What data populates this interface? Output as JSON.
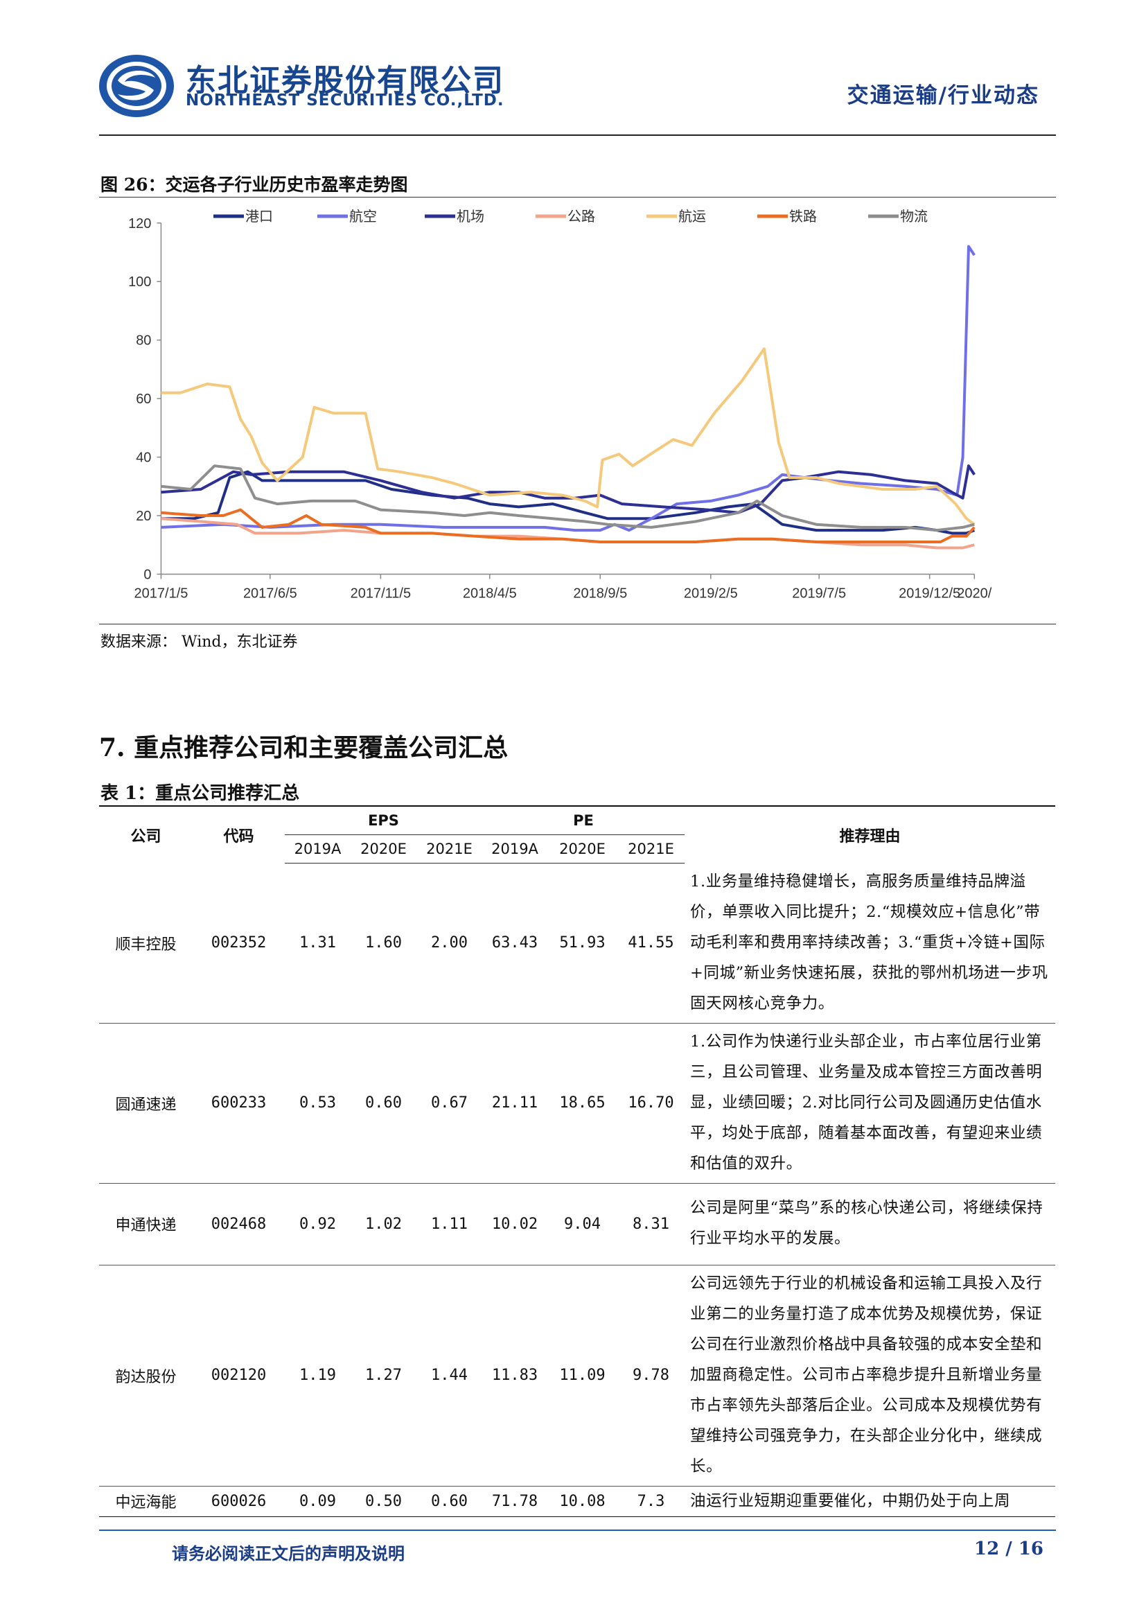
{
  "header": {
    "company_cn": "东北证券股份有限公司",
    "company_en": "NORTHEAST SECURITIES CO.,LTD.",
    "section": "交通运输/行业动态",
    "brand_color": "#17468e"
  },
  "figure": {
    "caption": "图 26：交运各子行业历史市盈率走势图",
    "source": "数据来源：  Wind，东北证券"
  },
  "chart_data": {
    "type": "line",
    "title": "",
    "xlabel": "",
    "ylabel": "",
    "ylim": [
      0,
      120
    ],
    "yticks": [
      "0",
      "20",
      "40",
      "60",
      "80",
      "100",
      "120"
    ],
    "xticks": [
      "2017/1/5",
      "2017/6/5",
      "2017/11/5",
      "2018/4/5",
      "2018/9/5",
      "2019/2/5",
      "2019/7/5",
      "2019/12/5",
      "2020/"
    ],
    "x_range": [
      "2017/1/5",
      "2020/2/5"
    ],
    "grid": false,
    "legend_position": "top",
    "series": [
      {
        "name": "港口",
        "color": "#1f2f86",
        "points": [
          [
            "2017/1/5",
            19
          ],
          [
            "2017/2/20",
            19
          ],
          [
            "2017/3/25",
            21
          ],
          [
            "2017/4/10",
            33
          ],
          [
            "2017/5/5",
            35
          ],
          [
            "2017/5/25",
            32
          ],
          [
            "2017/8/1",
            32
          ],
          [
            "2017/10/15",
            32
          ],
          [
            "2017/11/20",
            29
          ],
          [
            "2018/1/15",
            27
          ],
          [
            "2018/3/5",
            26
          ],
          [
            "2018/4/5",
            24
          ],
          [
            "2018/5/15",
            23
          ],
          [
            "2018/7/1",
            24
          ],
          [
            "2018/8/15",
            21
          ],
          [
            "2018/9/15",
            19
          ],
          [
            "2018/11/15",
            19
          ],
          [
            "2019/1/15",
            21
          ],
          [
            "2019/3/1",
            23
          ],
          [
            "2019/4/5",
            24
          ],
          [
            "2019/5/15",
            17
          ],
          [
            "2019/7/1",
            15
          ],
          [
            "2019/8/15",
            15
          ],
          [
            "2019/10/1",
            15
          ],
          [
            "2019/11/15",
            16
          ],
          [
            "2019/12/15",
            15
          ],
          [
            "2020/1/5",
            14
          ],
          [
            "2020/1/25",
            14
          ],
          [
            "2020/2/5",
            15
          ]
        ]
      },
      {
        "name": "航空",
        "color": "#6f6fe6",
        "points": [
          [
            "2017/1/5",
            16
          ],
          [
            "2017/4/1",
            17
          ],
          [
            "2017/6/5",
            16
          ],
          [
            "2017/9/1",
            17
          ],
          [
            "2017/11/5",
            17
          ],
          [
            "2018/2/1",
            16
          ],
          [
            "2018/4/5",
            16
          ],
          [
            "2018/6/20",
            16
          ],
          [
            "2018/8/1",
            15
          ],
          [
            "2018/9/5",
            15
          ],
          [
            "2018/9/25",
            17
          ],
          [
            "2018/10/15",
            15
          ],
          [
            "2018/11/15",
            19
          ],
          [
            "2018/12/20",
            24
          ],
          [
            "2019/2/5",
            25
          ],
          [
            "2019/3/15",
            27
          ],
          [
            "2019/4/25",
            30
          ],
          [
            "2019/5/15",
            34
          ],
          [
            "2019/6/15",
            33
          ],
          [
            "2019/7/20",
            32
          ],
          [
            "2019/9/1",
            31
          ],
          [
            "2019/11/1",
            30
          ],
          [
            "2019/12/15",
            29
          ],
          [
            "2020/1/12",
            27
          ],
          [
            "2020/1/20",
            40
          ],
          [
            "2020/1/28",
            112
          ],
          [
            "2020/2/5",
            109
          ]
        ]
      },
      {
        "name": "机场",
        "color": "#2d2f94",
        "points": [
          [
            "2017/1/5",
            28
          ],
          [
            "2017/3/1",
            29
          ],
          [
            "2017/4/15",
            35
          ],
          [
            "2017/5/10",
            34
          ],
          [
            "2017/7/1",
            35
          ],
          [
            "2017/9/15",
            35
          ],
          [
            "2017/11/5",
            32
          ],
          [
            "2018/1/1",
            28
          ],
          [
            "2018/2/15",
            26
          ],
          [
            "2018/4/5",
            28
          ],
          [
            "2018/5/15",
            28
          ],
          [
            "2018/6/20",
            26
          ],
          [
            "2018/8/1",
            26
          ],
          [
            "2018/9/5",
            27
          ],
          [
            "2018/10/5",
            24
          ],
          [
            "2018/12/1",
            23
          ],
          [
            "2019/2/1",
            22
          ],
          [
            "2019/3/15",
            21
          ],
          [
            "2019/4/15",
            24
          ],
          [
            "2019/5/15",
            32
          ],
          [
            "2019/6/15",
            33
          ],
          [
            "2019/8/1",
            35
          ],
          [
            "2019/9/15",
            34
          ],
          [
            "2019/11/1",
            32
          ],
          [
            "2019/12/15",
            31
          ],
          [
            "2020/1/5",
            28
          ],
          [
            "2020/1/20",
            26
          ],
          [
            "2020/1/28",
            37
          ],
          [
            "2020/2/5",
            34
          ]
        ]
      },
      {
        "name": "公路",
        "color": "#f2a48b",
        "points": [
          [
            "2017/1/5",
            19
          ],
          [
            "2017/3/1",
            18
          ],
          [
            "2017/4/20",
            17
          ],
          [
            "2017/5/15",
            14
          ],
          [
            "2017/7/15",
            14
          ],
          [
            "2017/9/15",
            15
          ],
          [
            "2017/11/5",
            14
          ],
          [
            "2018/1/15",
            14
          ],
          [
            "2018/3/15",
            13
          ],
          [
            "2018/5/15",
            13
          ],
          [
            "2018/7/15",
            12
          ],
          [
            "2018/9/5",
            11
          ],
          [
            "2018/11/15",
            11
          ],
          [
            "2019/1/15",
            11
          ],
          [
            "2019/3/15",
            12
          ],
          [
            "2019/5/1",
            12
          ],
          [
            "2019/7/1",
            11
          ],
          [
            "2019/9/1",
            10
          ],
          [
            "2019/11/1",
            10
          ],
          [
            "2019/12/15",
            9
          ],
          [
            "2020/1/20",
            9
          ],
          [
            "2020/2/5",
            10
          ]
        ]
      },
      {
        "name": "航运",
        "color": "#f5c97b",
        "points": [
          [
            "2017/1/5",
            62
          ],
          [
            "2017/2/1",
            62
          ],
          [
            "2017/3/10",
            65
          ],
          [
            "2017/4/10",
            64
          ],
          [
            "2017/4/25",
            53
          ],
          [
            "2017/5/10",
            47
          ],
          [
            "2017/5/25",
            38
          ],
          [
            "2017/6/15",
            32
          ],
          [
            "2017/7/20",
            40
          ],
          [
            "2017/8/5",
            57
          ],
          [
            "2017/9/1",
            55
          ],
          [
            "2017/10/15",
            55
          ],
          [
            "2017/11/1",
            36
          ],
          [
            "2017/12/1",
            35
          ],
          [
            "2018/1/15",
            33
          ],
          [
            "2018/2/15",
            31
          ],
          [
            "2018/4/5",
            27
          ],
          [
            "2018/6/1",
            28
          ],
          [
            "2018/7/15",
            27
          ],
          [
            "2018/8/15",
            25
          ],
          [
            "2018/9/1",
            23
          ],
          [
            "2018/9/8",
            39
          ],
          [
            "2018/10/1",
            41
          ],
          [
            "2018/10/20",
            37
          ],
          [
            "2018/11/20",
            42
          ],
          [
            "2018/12/15",
            46
          ],
          [
            "2019/1/10",
            44
          ],
          [
            "2019/2/10",
            55
          ],
          [
            "2019/3/20",
            66
          ],
          [
            "2019/4/20",
            77
          ],
          [
            "2019/5/10",
            45
          ],
          [
            "2019/5/25",
            33
          ],
          [
            "2019/7/1",
            33
          ],
          [
            "2019/8/1",
            31
          ],
          [
            "2019/9/1",
            30
          ],
          [
            "2019/10/1",
            29
          ],
          [
            "2019/11/15",
            29
          ],
          [
            "2019/12/15",
            30
          ],
          [
            "2020/1/10",
            24
          ],
          [
            "2020/1/25",
            19
          ],
          [
            "2020/2/5",
            17
          ]
        ]
      },
      {
        "name": "铁路",
        "color": "#ea6d22",
        "points": [
          [
            "2017/1/5",
            21
          ],
          [
            "2017/3/1",
            20
          ],
          [
            "2017/4/1",
            20
          ],
          [
            "2017/4/25",
            22
          ],
          [
            "2017/5/25",
            16
          ],
          [
            "2017/7/1",
            17
          ],
          [
            "2017/7/25",
            20
          ],
          [
            "2017/8/15",
            17
          ],
          [
            "2017/10/15",
            16
          ],
          [
            "2017/11/5",
            14
          ],
          [
            "2018/1/15",
            14
          ],
          [
            "2018/3/15",
            13
          ],
          [
            "2018/5/15",
            12
          ],
          [
            "2018/7/15",
            12
          ],
          [
            "2018/9/5",
            11
          ],
          [
            "2018/11/15",
            11
          ],
          [
            "2019/1/15",
            11
          ],
          [
            "2019/3/15",
            12
          ],
          [
            "2019/5/1",
            12
          ],
          [
            "2019/7/1",
            11
          ],
          [
            "2019/9/1",
            11
          ],
          [
            "2019/11/1",
            11
          ],
          [
            "2019/12/20",
            11
          ],
          [
            "2020/1/5",
            13
          ],
          [
            "2020/1/25",
            13
          ],
          [
            "2020/2/5",
            16
          ]
        ]
      },
      {
        "name": "物流",
        "color": "#8e8e8e",
        "points": [
          [
            "2017/1/5",
            30
          ],
          [
            "2017/2/15",
            29
          ],
          [
            "2017/3/20",
            37
          ],
          [
            "2017/4/25",
            36
          ],
          [
            "2017/5/15",
            26
          ],
          [
            "2017/6/15",
            24
          ],
          [
            "2017/8/1",
            25
          ],
          [
            "2017/10/1",
            25
          ],
          [
            "2017/11/5",
            22
          ],
          [
            "2018/1/15",
            21
          ],
          [
            "2018/3/1",
            20
          ],
          [
            "2018/4/5",
            21
          ],
          [
            "2018/5/15",
            20
          ],
          [
            "2018/7/1",
            19
          ],
          [
            "2018/8/15",
            18
          ],
          [
            "2018/9/15",
            17
          ],
          [
            "2018/11/15",
            16
          ],
          [
            "2019/1/15",
            18
          ],
          [
            "2019/3/15",
            21
          ],
          [
            "2019/4/10",
            25
          ],
          [
            "2019/5/15",
            20
          ],
          [
            "2019/7/1",
            17
          ],
          [
            "2019/9/1",
            16
          ],
          [
            "2019/11/1",
            16
          ],
          [
            "2019/12/15",
            15
          ],
          [
            "2020/1/20",
            16
          ],
          [
            "2020/2/5",
            17
          ]
        ]
      }
    ]
  },
  "section": {
    "title": "7. 重点推荐公司和主要覆盖公司汇总"
  },
  "table": {
    "caption": "表 1：重点公司推荐汇总",
    "headers": {
      "company": "公司",
      "code": "代码",
      "eps": "EPS",
      "pe": "PE",
      "reason": "推荐理由",
      "years": [
        "2019A",
        "2020E",
        "2021E",
        "2019A",
        "2020E",
        "2021E"
      ]
    },
    "rows": [
      {
        "name": "顺丰控股",
        "code": "002352",
        "eps": [
          "1.31",
          "1.60",
          "2.00"
        ],
        "pe": [
          "63.43",
          "51.93",
          "41.55"
        ],
        "reason": "1.业务量维持稳健增长，高服务质量维持品牌溢价，单票收入同比提升；2.“规模效应+信息化”带动毛利率和费用率持续改善；3.“重货+冷链+国际+同城”新业务快速拓展，获批的鄂州机场进一步巩固天网核心竞争力。"
      },
      {
        "name": "圆通速递",
        "code": "600233",
        "eps": [
          "0.53",
          "0.60",
          "0.67"
        ],
        "pe": [
          "21.11",
          "18.65",
          "16.70"
        ],
        "reason": "1.公司作为快递行业头部企业，市占率位居行业第三，且公司管理、业务量及成本管控三方面改善明显，业绩回暖；2.对比同行公司及圆通历史估值水平，均处于底部，随着基本面改善，有望迎来业绩和估值的双升。"
      },
      {
        "name": "申通快递",
        "code": "002468",
        "eps": [
          "0.92",
          "1.02",
          "1.11"
        ],
        "pe": [
          "10.02",
          "9.04",
          "8.31"
        ],
        "reason": "公司是阿里“菜鸟”系的核心快递公司，将继续保持行业平均水平的发展。"
      },
      {
        "name": "韵达股份",
        "code": "002120",
        "eps": [
          "1.19",
          "1.27",
          "1.44"
        ],
        "pe": [
          "11.83",
          "11.09",
          "9.78"
        ],
        "reason": "公司远领先于行业的机械设备和运输工具投入及行业第二的业务量打造了成本优势及规模优势，保证公司在行业激烈价格战中具备较强的成本安全垫和加盟商稳定性。公司市占率稳步提升且新增业务量市占率领先头部落后企业。公司成本及规模优势有望维持公司强竞争力，在头部企业分化中，继续成长。"
      },
      {
        "name": "中远海能",
        "code": "600026",
        "eps": [
          "0.09",
          "0.50",
          "0.60"
        ],
        "pe": [
          "71.78",
          "10.08",
          "7.3"
        ],
        "reason": "油运行业短期迎重要催化，中期仍处于向上周"
      }
    ]
  },
  "footer": {
    "note": "请务必阅读正文后的声明及说明",
    "page": "12 / 16",
    "color": "#1a3d86"
  }
}
